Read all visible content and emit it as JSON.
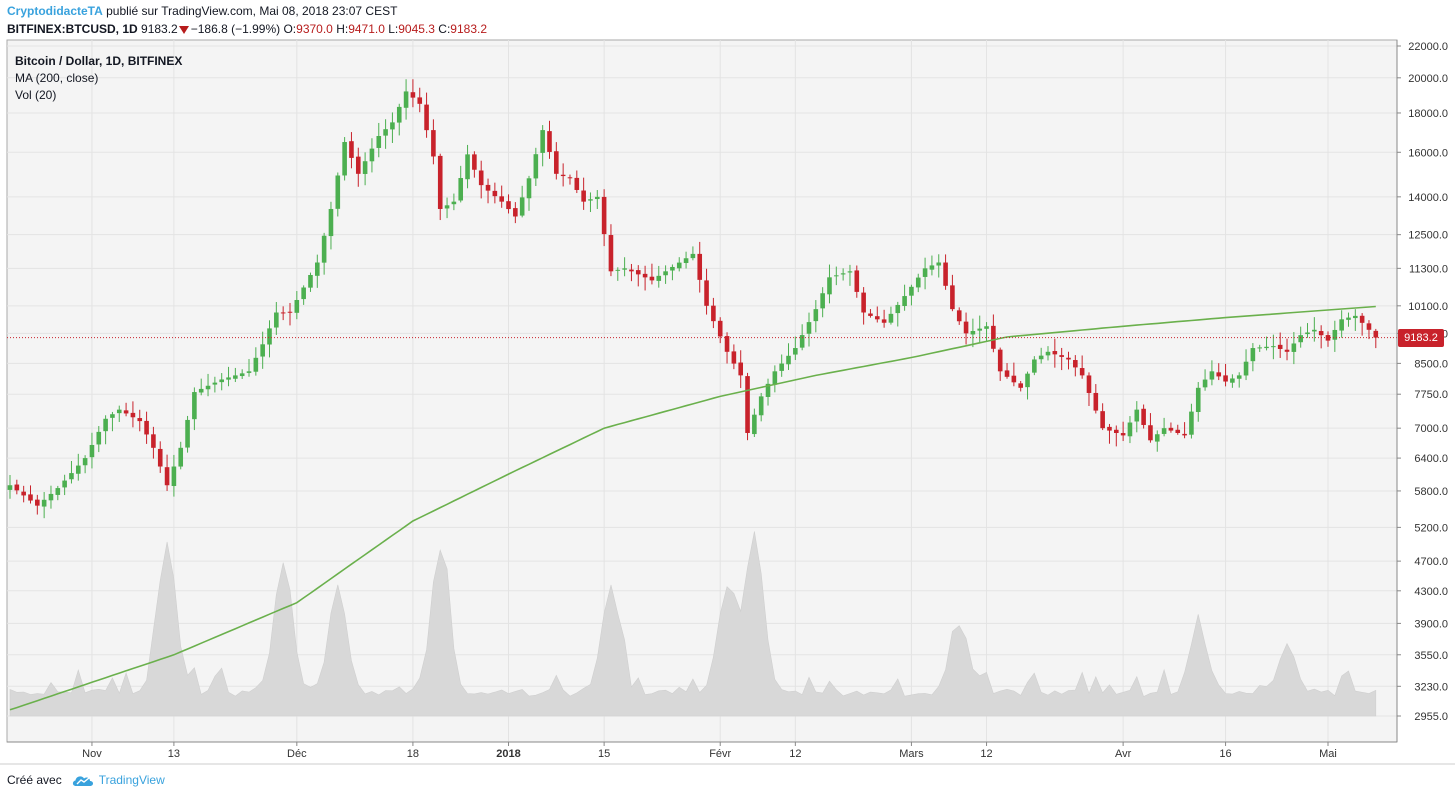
{
  "header": {
    "author": "CryptodidacteTA",
    "published_text": " publié sur TradingView.com, Mai 08, 2018 23:07 CEST",
    "symbol": "BITFINEX:BTCUSD, 1D",
    "last": "9183.2",
    "change": "−186.8 (−1.99%)",
    "o_label": "O:",
    "o_value": "9370.0",
    "h_label": "H:",
    "h_value": "9471.0",
    "l_label": "L:",
    "l_value": "9045.3",
    "c_label": "C:",
    "c_value": "9183.2"
  },
  "legend": {
    "title": "Bitcoin / Dollar, 1D, BITFINEX",
    "ma": "MA (200, close)",
    "vol": "Vol (20)"
  },
  "price_tag": "9183.2",
  "footer": {
    "made_with": "Créé avec",
    "brand": "TradingView"
  },
  "colors": {
    "up": "#4caf50",
    "down": "#c8222b",
    "ma": "#6ab04c",
    "volume": "#d8d8d8",
    "accent": "#39a2dd"
  },
  "chart_data": {
    "type": "candlestick",
    "title": "Bitcoin / Dollar, 1D, BITFINEX",
    "y_scale": "log",
    "y_ticks": [
      2955,
      3230,
      3550,
      3900,
      4300,
      4700,
      5200,
      5800,
      6400,
      7000,
      7750,
      8500,
      9300,
      10100,
      11300,
      12500,
      14000,
      16000,
      18000,
      20000,
      22000
    ],
    "y_tick_labels": [
      "2955.0",
      "3230.0",
      "3550.0",
      "3900.0",
      "4300.0",
      "4700.0",
      "5200.0",
      "5800.0",
      "6400.0",
      "7000.0",
      "7750.0",
      "8500.0",
      "9300.0",
      "10100.0",
      "11300.0",
      "12500.0",
      "14000.0",
      "16000.0",
      "18000.0",
      "20000.0",
      "22000.0"
    ],
    "x_ticks": [
      {
        "label": "Nov",
        "date": "2017-11-01",
        "bold": false
      },
      {
        "label": "13",
        "date": "2017-11-13",
        "bold": false
      },
      {
        "label": "Déc",
        "date": "2017-12-01",
        "bold": false
      },
      {
        "label": "18",
        "date": "2017-12-18",
        "bold": false
      },
      {
        "label": "2018",
        "date": "2018-01-01",
        "bold": true
      },
      {
        "label": "15",
        "date": "2018-01-15",
        "bold": false
      },
      {
        "label": "Févr",
        "date": "2018-02-01",
        "bold": false
      },
      {
        "label": "12",
        "date": "2018-02-12",
        "bold": false
      },
      {
        "label": "Mars",
        "date": "2018-03-01",
        "bold": false
      },
      {
        "label": "12",
        "date": "2018-03-12",
        "bold": false
      },
      {
        "label": "Avr",
        "date": "2018-04-01",
        "bold": false
      },
      {
        "label": "16",
        "date": "2018-04-16",
        "bold": false
      },
      {
        "label": "Mai",
        "date": "2018-05-01",
        "bold": false
      }
    ],
    "last_price": 9183.2,
    "close_anchors": [
      [
        "2017-10-20",
        5900
      ],
      [
        "2017-10-24",
        5550
      ],
      [
        "2017-10-27",
        5850
      ],
      [
        "2017-10-31",
        6400
      ],
      [
        "2017-11-03",
        7200
      ],
      [
        "2017-11-05",
        7400
      ],
      [
        "2017-11-08",
        7150
      ],
      [
        "2017-11-10",
        6600
      ],
      [
        "2017-11-12",
        5900
      ],
      [
        "2017-11-14",
        6600
      ],
      [
        "2017-11-16",
        7800
      ],
      [
        "2017-11-20",
        8100
      ],
      [
        "2017-11-24",
        8300
      ],
      [
        "2017-11-26",
        9000
      ],
      [
        "2017-11-28",
        9900
      ],
      [
        "2017-11-30",
        9900
      ],
      [
        "2017-12-04",
        11500
      ],
      [
        "2017-12-06",
        13500
      ],
      [
        "2017-12-08",
        16500
      ],
      [
        "2017-12-10",
        15000
      ],
      [
        "2017-12-13",
        16800
      ],
      [
        "2017-12-15",
        17500
      ],
      [
        "2017-12-17",
        19200
      ],
      [
        "2017-12-19",
        18500
      ],
      [
        "2017-12-21",
        15800
      ],
      [
        "2017-12-22",
        13500
      ],
      [
        "2017-12-24",
        13800
      ],
      [
        "2017-12-26",
        15900
      ],
      [
        "2017-12-28",
        14500
      ],
      [
        "2017-12-31",
        13800
      ],
      [
        "2018-01-02",
        13200
      ],
      [
        "2018-01-04",
        14800
      ],
      [
        "2018-01-06",
        17100
      ],
      [
        "2018-01-08",
        15000
      ],
      [
        "2018-01-10",
        14800
      ],
      [
        "2018-01-12",
        13800
      ],
      [
        "2018-01-14",
        14000
      ],
      [
        "2018-01-16",
        11200
      ],
      [
        "2018-01-18",
        11300
      ],
      [
        "2018-01-22",
        10900
      ],
      [
        "2018-01-24",
        11200
      ],
      [
        "2018-01-28",
        11800
      ],
      [
        "2018-01-30",
        10100
      ],
      [
        "2018-02-02",
        8800
      ],
      [
        "2018-02-04",
        8200
      ],
      [
        "2018-02-05",
        6900
      ],
      [
        "2018-02-07",
        7700
      ],
      [
        "2018-02-09",
        8300
      ],
      [
        "2018-02-12",
        8900
      ],
      [
        "2018-02-15",
        10000
      ],
      [
        "2018-02-17",
        11000
      ],
      [
        "2018-02-20",
        11200
      ],
      [
        "2018-02-22",
        9900
      ],
      [
        "2018-02-25",
        9600
      ],
      [
        "2018-02-28",
        10400
      ],
      [
        "2018-03-03",
        11300
      ],
      [
        "2018-03-05",
        11500
      ],
      [
        "2018-03-07",
        10000
      ],
      [
        "2018-03-09",
        9300
      ],
      [
        "2018-03-12",
        9500
      ],
      [
        "2018-03-14",
        8300
      ],
      [
        "2018-03-17",
        7900
      ],
      [
        "2018-03-19",
        8600
      ],
      [
        "2018-03-21",
        8800
      ],
      [
        "2018-03-24",
        8600
      ],
      [
        "2018-03-26",
        8200
      ],
      [
        "2018-03-29",
        7000
      ],
      [
        "2018-04-01",
        6850
      ],
      [
        "2018-04-03",
        7400
      ],
      [
        "2018-04-05",
        6750
      ],
      [
        "2018-04-07",
        7000
      ],
      [
        "2018-04-10",
        6850
      ],
      [
        "2018-04-12",
        7900
      ],
      [
        "2018-04-14",
        8300
      ],
      [
        "2018-04-16",
        8050
      ],
      [
        "2018-04-18",
        8200
      ],
      [
        "2018-04-20",
        8900
      ],
      [
        "2018-04-23",
        8950
      ],
      [
        "2018-04-25",
        8800
      ],
      [
        "2018-04-27",
        9250
      ],
      [
        "2018-04-29",
        9400
      ],
      [
        "2018-05-01",
        9100
      ],
      [
        "2018-05-03",
        9700
      ],
      [
        "2018-05-05",
        9800
      ],
      [
        "2018-05-07",
        9400
      ],
      [
        "2018-05-08",
        9183.2
      ]
    ],
    "ma200_anchors": [
      [
        "2017-10-20",
        3010
      ],
      [
        "2017-11-13",
        3550
      ],
      [
        "2017-12-01",
        4150
      ],
      [
        "2017-12-18",
        5300
      ],
      [
        "2018-01-01",
        6100
      ],
      [
        "2018-01-15",
        7000
      ],
      [
        "2018-02-01",
        7700
      ],
      [
        "2018-02-15",
        8200
      ],
      [
        "2018-03-01",
        8650
      ],
      [
        "2018-03-15",
        9200
      ],
      [
        "2018-04-01",
        9500
      ],
      [
        "2018-04-16",
        9750
      ],
      [
        "2018-05-08",
        10080
      ]
    ],
    "volume_peaks": [
      [
        "2017-11-12",
        1.0
      ],
      [
        "2017-11-29",
        0.88
      ],
      [
        "2017-12-07",
        0.7
      ],
      [
        "2017-12-22",
        0.95
      ],
      [
        "2018-01-16",
        0.7
      ],
      [
        "2018-02-02",
        0.72
      ],
      [
        "2018-02-06",
        1.05
      ],
      [
        "2018-03-08",
        0.45
      ],
      [
        "2018-04-12",
        0.4
      ],
      [
        "2018-04-25",
        0.3
      ]
    ]
  }
}
